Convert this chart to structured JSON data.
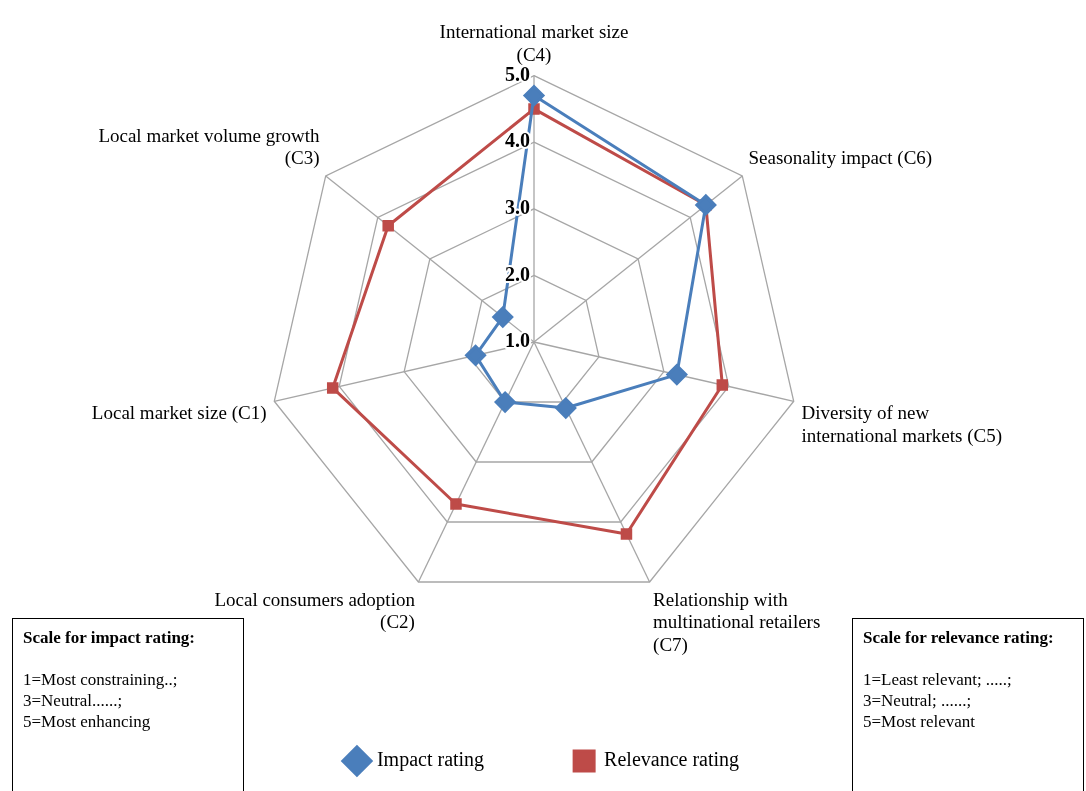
{
  "chart_data": {
    "type": "radar",
    "categories": [
      "International market size (C4)",
      "Seasonality impact (C6)",
      "Diversity of new international markets (C5)",
      "Relationship with multinational retailers (C7)",
      "Local consumers adoption (C2)",
      "Local market size (C1)",
      "Local market volume growth (C3)"
    ],
    "series": [
      {
        "name": "Impact rating",
        "color": "#4a7ebb",
        "marker": "diamond",
        "values": [
          4.7,
          4.3,
          3.2,
          2.1,
          2.0,
          1.9,
          1.6
        ]
      },
      {
        "name": "Relevance rating",
        "color": "#be4b48",
        "marker": "square",
        "values": [
          4.5,
          4.3,
          3.9,
          4.2,
          3.7,
          4.1,
          3.8
        ]
      }
    ],
    "ylim": [
      1,
      5
    ],
    "yticks": [
      {
        "value": 1,
        "label": "1.0"
      },
      {
        "value": 2,
        "label": "2.0"
      },
      {
        "value": 3,
        "label": "3.0"
      },
      {
        "value": 4,
        "label": "4.0"
      },
      {
        "value": 5,
        "label": "5.0"
      }
    ],
    "grid": true,
    "legend": "bottom",
    "annotations": [
      "Scale for impact rating:\n\n1=Most constraining..;\n3=Neutral......;\n5=Most enhancing",
      "Scale for relevance rating:\n\n1=Least relevant; .....;\n3=Neutral; ......;\n5=Most relevant"
    ]
  }
}
